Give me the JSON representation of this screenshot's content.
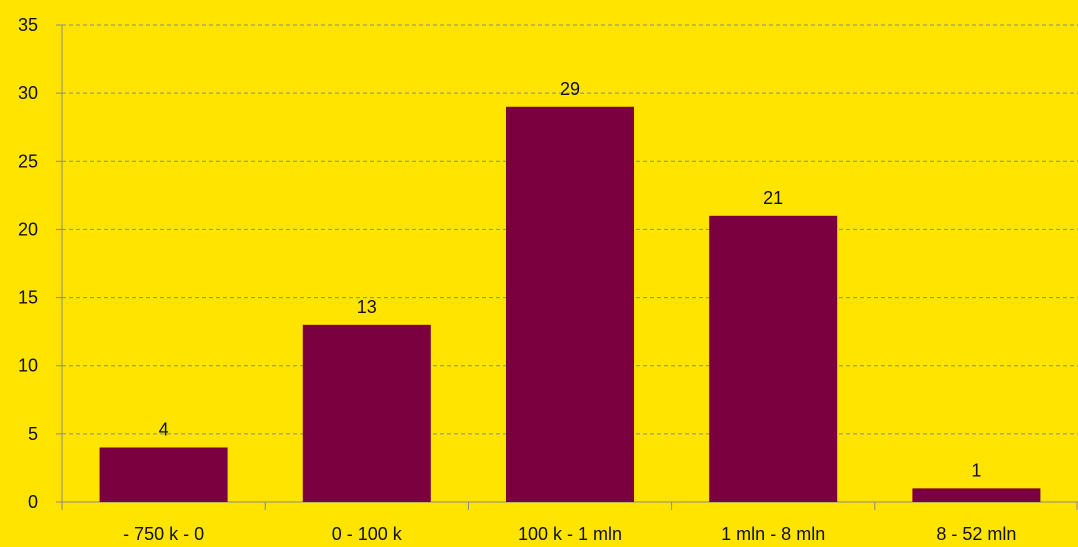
{
  "chart_data": {
    "type": "bar",
    "categories": [
      "- 750 k - 0",
      "0 - 100 k",
      "100 k - 1 mln",
      "1 mln - 8 mln",
      "8 - 52 mln"
    ],
    "values": [
      4,
      13,
      29,
      21,
      1
    ],
    "data_labels": [
      "4",
      "13",
      "29",
      "21",
      "1"
    ],
    "y_ticks": [
      0,
      5,
      10,
      15,
      20,
      25,
      30,
      35
    ],
    "ylim": [
      0,
      35
    ],
    "grid": true,
    "legend": "none",
    "bar_color": "#7a0040",
    "background_color": "#ffe400",
    "title": "",
    "xlabel": "",
    "ylabel": ""
  }
}
